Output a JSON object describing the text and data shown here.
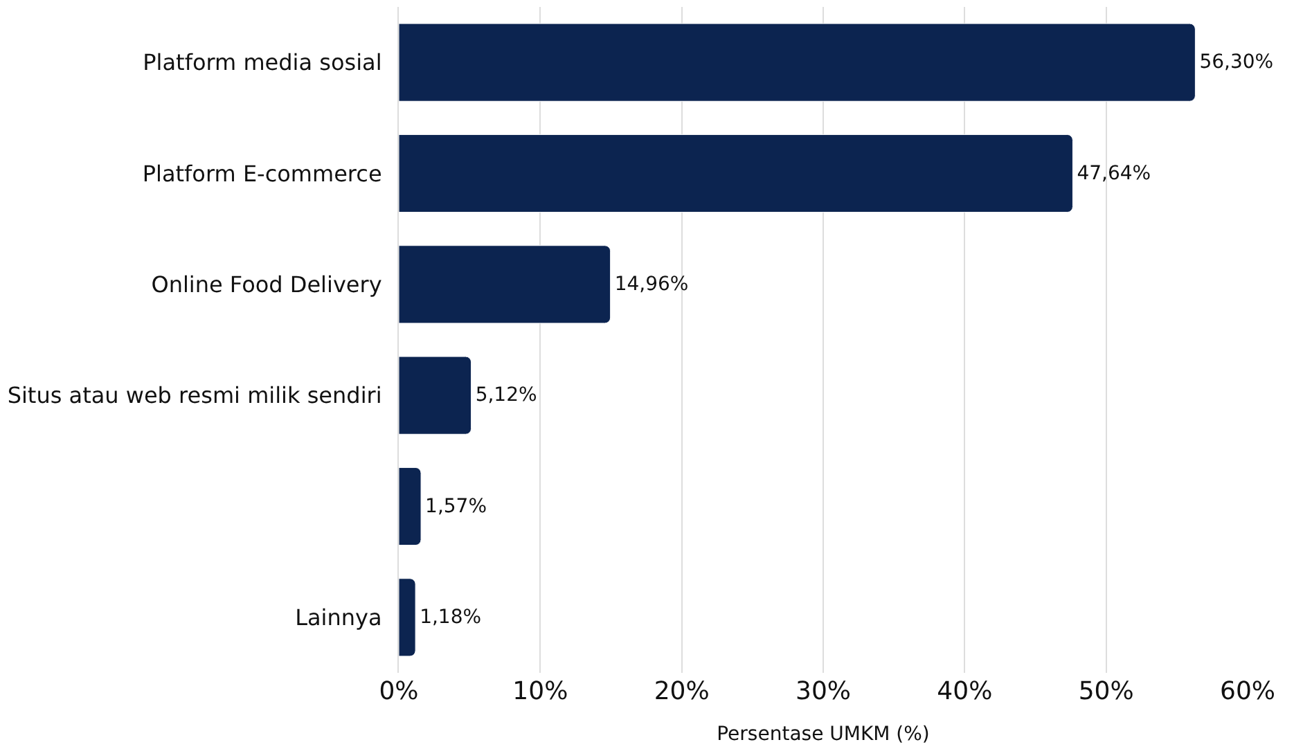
{
  "chart_data": {
    "type": "bar",
    "orientation": "horizontal",
    "xlabel": "Persentase UMKM (%)",
    "categories": [
      "Platform media sosial",
      "Platform E-commerce",
      "Online Food Delivery",
      "Situs atau web resmi milik sendiri",
      null,
      "Lainnya"
    ],
    "values": [
      56.3,
      47.64,
      14.96,
      5.12,
      1.57,
      1.18
    ],
    "value_labels": [
      "56,30%",
      "47,64%",
      "14,96%",
      "5,12%",
      "1,57%",
      "1,18%"
    ],
    "color": "#0c2450",
    "xlim": [
      0,
      60
    ],
    "xticks": [
      {
        "value": 0,
        "label": "0%"
      },
      {
        "value": 10,
        "label": "10%"
      },
      {
        "value": 20,
        "label": "20%"
      },
      {
        "value": 30,
        "label": "30%"
      },
      {
        "value": 40,
        "label": "40%"
      },
      {
        "value": 50,
        "label": "50%"
      },
      {
        "value": 60,
        "label": "60%"
      }
    ],
    "grid": "x"
  }
}
